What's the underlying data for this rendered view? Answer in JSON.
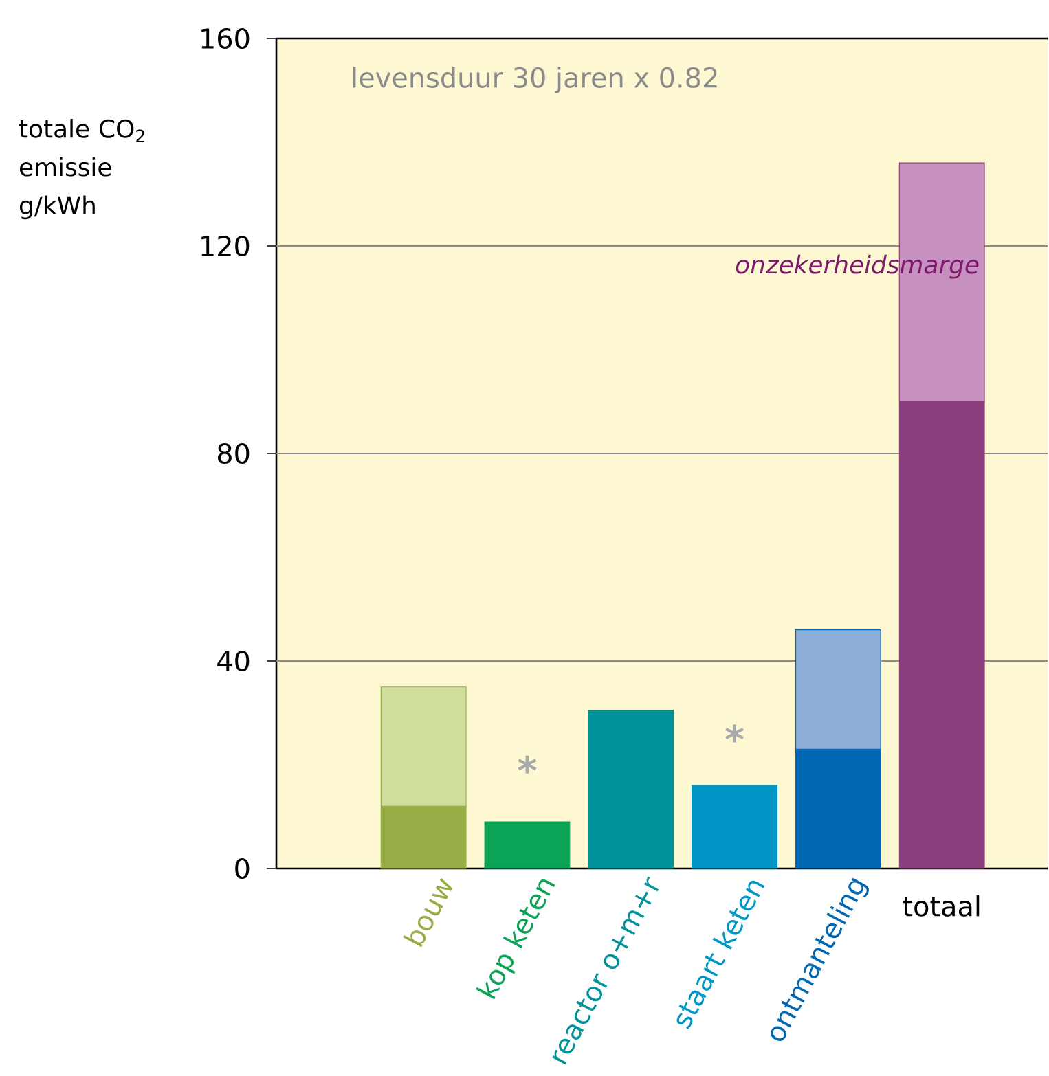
{
  "chart_data": {
    "type": "bar",
    "stacked": true,
    "ylabel": "totale CO$_{2}$ emissie g/kWh",
    "categories": [
      "bouw",
      "kop keten",
      "reactor o+m+r",
      "staart keten",
      "ontmanteling",
      "totaal"
    ],
    "series": [
      {
        "colors": [
          "#96ad46",
          "#0ba356",
          "#00949a",
          "#0097c7",
          "#0068b2",
          "#8b3f7d"
        ],
        "values": [
          12,
          9,
          30.5,
          16,
          23,
          90
        ]
      },
      {
        "colors": [
          "#d0de9b",
          null,
          null,
          null,
          "#8daed9",
          "#c690bf"
        ],
        "values": [
          23,
          null,
          null,
          null,
          23,
          46
        ]
      }
    ],
    "ylim": [
      0,
      160
    ],
    "yticks": [
      0,
      40,
      80,
      120,
      160
    ],
    "grid": "y",
    "annotations": [
      "levensduur 30 jaren x 0.82",
      "*",
      "*",
      "onzekerheidsmarge"
    ]
  }
}
